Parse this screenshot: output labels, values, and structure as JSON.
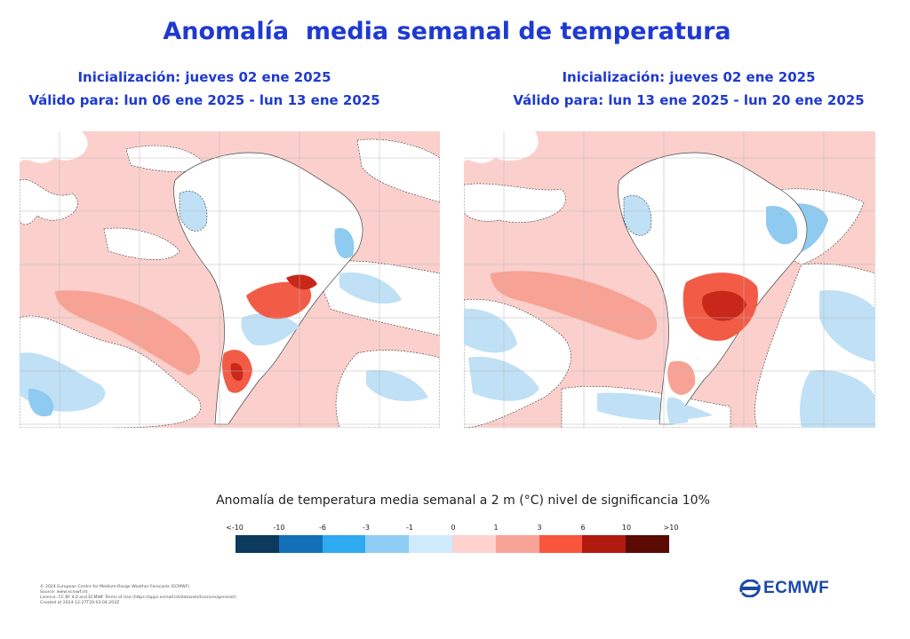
{
  "title": "Anomalía  media semanal de temperatura",
  "panels": [
    {
      "init": "Inicialización: jueves 02 ene 2025",
      "valid": "Válido para: lun 06 ene 2025 - lun 13 ene 2025"
    },
    {
      "init": "Inicialización: jueves 02 ene 2025",
      "valid": "Válido para: lun 13 ene 2025 - lun 20 ene 2025"
    }
  ],
  "legend": {
    "title": "Anomalía de temperatura media semanal a 2 m (°C) nivel de significancia 10%",
    "labels": [
      "<-10",
      "-10",
      "-6",
      "-3",
      "-1",
      "0",
      "1",
      "3",
      "6",
      "10",
      ">10"
    ],
    "colors": [
      "#0b3a5c",
      "#1370b8",
      "#2eaaf0",
      "#8fcdf4",
      "#cfeafb",
      "#ffd2cf",
      "#f8a397",
      "#f9553c",
      "#b01a0e",
      "#5c0a04"
    ]
  },
  "footer": [
    "© 2024 European Centre for Medium-Range Weather Forecasts (ECMWF)",
    "Source: www.ecmwf.int",
    "Licence: CC BY 4.0 and ECMWF Terms of Use (https://apps.ecmwf.int/datasets/licences/general/)",
    "Created at 2024-12-27T20:03:04.203Z"
  ],
  "logo": {
    "text": "ECMWF",
    "color": "#1a4aa6"
  },
  "colors": {
    "title": "#1f3ad1",
    "ocean_warm": "#fbd0cc",
    "anom_cool": "#bfe0f5",
    "anom_cold": "#8fcaf0",
    "anom_warm": "#f7a294",
    "anom_hot": "#f25b45",
    "anom_very_hot": "#c8271a",
    "neutral": "#ffffff",
    "grid": "#b8b8b8"
  }
}
